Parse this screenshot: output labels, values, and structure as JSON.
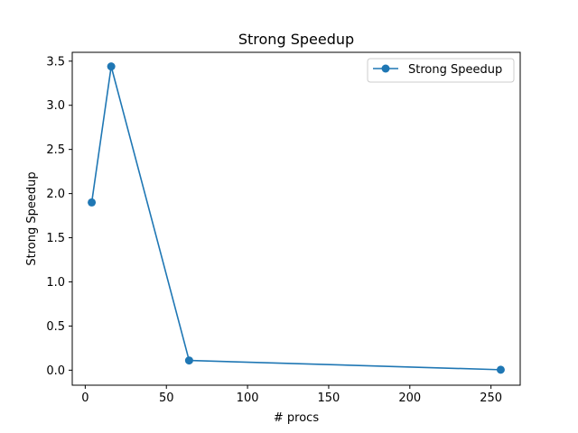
{
  "chart_data": {
    "type": "line",
    "title": "Strong Speedup",
    "xlabel": "# procs",
    "ylabel": "Strong Speedup",
    "xlim": [
      -8,
      268
    ],
    "ylim": [
      -0.17,
      3.6
    ],
    "xticks": [
      0,
      50,
      100,
      150,
      200,
      250
    ],
    "yticks": [
      0.0,
      0.5,
      1.0,
      1.5,
      2.0,
      2.5,
      3.0,
      3.5
    ],
    "xtick_labels": [
      "0",
      "50",
      "100",
      "150",
      "200",
      "250"
    ],
    "ytick_labels": [
      "0.0",
      "0.5",
      "1.0",
      "1.5",
      "2.0",
      "2.5",
      "3.0",
      "3.5"
    ],
    "grid": false,
    "legend_position": "top-right",
    "series": [
      {
        "name": "Strong Speedup",
        "color": "#1f77b4",
        "marker": "circle",
        "x": [
          4,
          16,
          64,
          256
        ],
        "y": [
          1.9,
          3.44,
          0.11,
          0.005
        ]
      }
    ]
  }
}
